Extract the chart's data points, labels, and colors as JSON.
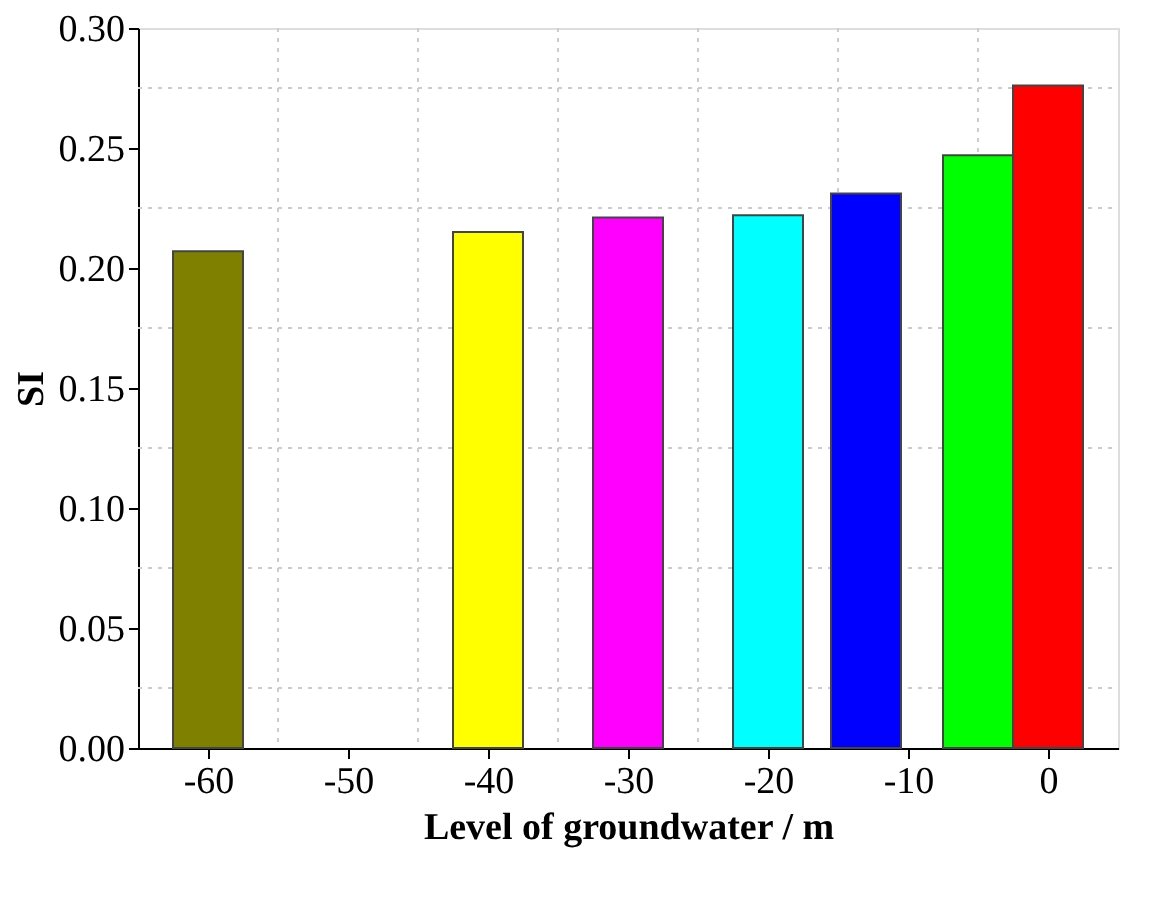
{
  "chart_data": {
    "type": "bar",
    "xlabel": "Level of groundwater / m",
    "ylabel": "SI",
    "x": [
      -60,
      -40,
      -30,
      -20,
      -13,
      -5,
      0
    ],
    "values": [
      0.207,
      0.215,
      0.221,
      0.222,
      0.231,
      0.247,
      0.276
    ],
    "colors": [
      "#808000",
      "#ffff00",
      "#ff00ff",
      "#00ffff",
      "#0000ff",
      "#00ff00",
      "#ff0000"
    ],
    "xlim": [
      -65,
      5
    ],
    "xticks": [
      -60,
      -50,
      -40,
      -30,
      -20,
      -10,
      0
    ],
    "ylim": [
      0,
      0.3
    ],
    "yticks": [
      {
        "value": 0,
        "label": "0.00"
      },
      0.05,
      {
        "value": 0.1,
        "label": "0.10"
      },
      0.15,
      {
        "value": 0.2,
        "label": "0.20"
      },
      0.25,
      {
        "value": 0.3,
        "label": "0.30"
      }
    ],
    "grid": true
  }
}
